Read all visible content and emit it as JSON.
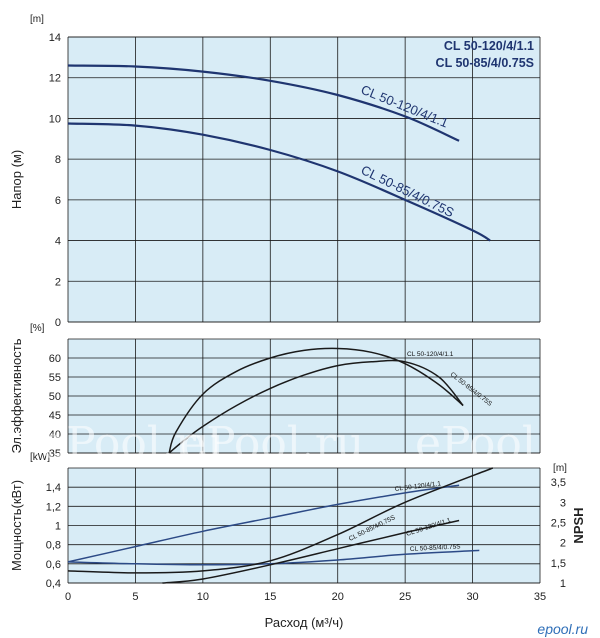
{
  "chart_data": [
    {
      "type": "line",
      "ylabel": "Напор (м)",
      "y_unit": "[m]",
      "xlim": [
        0,
        35
      ],
      "ylim": [
        0,
        14
      ],
      "yticks": [
        "0",
        "2",
        "4",
        "6",
        "8",
        "10",
        "12",
        "14"
      ],
      "grid": true,
      "legend": [
        "CL 50-120/4/1.1",
        "CL 50-85/4/0.75S"
      ],
      "series": [
        {
          "name": "CL 50-120/4/1.1",
          "x": [
            0,
            5,
            10,
            15,
            20,
            25,
            29
          ],
          "y": [
            12.6,
            12.55,
            12.3,
            11.85,
            11.15,
            10.1,
            8.9
          ]
        },
        {
          "name": "CL 50-85/4/0.75S",
          "x": [
            0,
            5,
            10,
            15,
            20,
            25,
            30,
            31.3
          ],
          "y": [
            9.75,
            9.65,
            9.2,
            8.45,
            7.4,
            6.0,
            4.5,
            4.0
          ]
        }
      ]
    },
    {
      "type": "line",
      "ylabel": "Эл.эффективность",
      "y_unit": "[%]",
      "xlim": [
        0,
        35
      ],
      "ylim": [
        35,
        65
      ],
      "yticks": [
        "35",
        "40",
        "45",
        "50",
        "55",
        "60"
      ],
      "grid": true,
      "series": [
        {
          "name": "CL 50-120/4/1.1",
          "x": [
            7.5,
            8,
            10,
            12.5,
            15,
            17.5,
            20,
            22.5,
            25,
            27.5,
            29.3
          ],
          "y": [
            35,
            40.5,
            50.5,
            56.5,
            60,
            62,
            62.5,
            61.5,
            58.5,
            53,
            47.5
          ]
        },
        {
          "name": "CL 50-85/4/0.75S",
          "x": [
            7.5,
            8.5,
            10,
            12.5,
            15,
            17.5,
            20,
            22.5,
            25,
            27.5,
            29.3
          ],
          "y": [
            35,
            38,
            42,
            47.5,
            52,
            55.5,
            58,
            59,
            59,
            55,
            47.5
          ]
        }
      ]
    },
    {
      "type": "line",
      "ylabel": "Мощность(кВт)",
      "y_unit": "[kW]",
      "y2label": "NPSH",
      "y2_unit": "[m]",
      "xlabel": "Расход (м³/ч)",
      "xlim": [
        0,
        35
      ],
      "ylim": [
        0.4,
        1.6
      ],
      "y2lim": [
        1,
        3.85
      ],
      "xticks": [
        "0",
        "5",
        "10",
        "15",
        "20",
        "25",
        "30",
        "35"
      ],
      "yticks": [
        "0,4",
        "0,6",
        "0,8",
        "1",
        "1,2",
        "1,4"
      ],
      "y2ticks": [
        "1",
        "1,5",
        "2",
        "2,5",
        "3",
        "3,5"
      ],
      "grid": true,
      "series": [
        {
          "name": "CL 50-120/4/1.1",
          "axis": "kW",
          "x": [
            0,
            5,
            10,
            15,
            20,
            25,
            29
          ],
          "y": [
            0.62,
            0.78,
            0.94,
            1.08,
            1.22,
            1.34,
            1.42
          ]
        },
        {
          "name": "CL 50-85/4/0.75S",
          "axis": "kW",
          "x": [
            0,
            5,
            10,
            15,
            20,
            25,
            30.5
          ],
          "y": [
            0.62,
            0.6,
            0.59,
            0.6,
            0.64,
            0.7,
            0.74
          ]
        },
        {
          "name": "CL 50-120/4/1.1",
          "axis": "NPSH",
          "x": [
            7,
            10,
            15,
            20,
            25,
            29
          ],
          "y": [
            1.0,
            1.1,
            1.45,
            1.85,
            2.25,
            2.55
          ]
        },
        {
          "name": "CL 50-85/4/0.75S",
          "axis": "NPSH",
          "x": [
            0,
            5,
            10,
            15,
            20,
            25,
            31.5
          ],
          "y": [
            1.3,
            1.25,
            1.3,
            1.55,
            2.2,
            3.0,
            3.85
          ]
        }
      ]
    }
  ],
  "watermark": "ePool.ru",
  "logo": "epool.ru"
}
